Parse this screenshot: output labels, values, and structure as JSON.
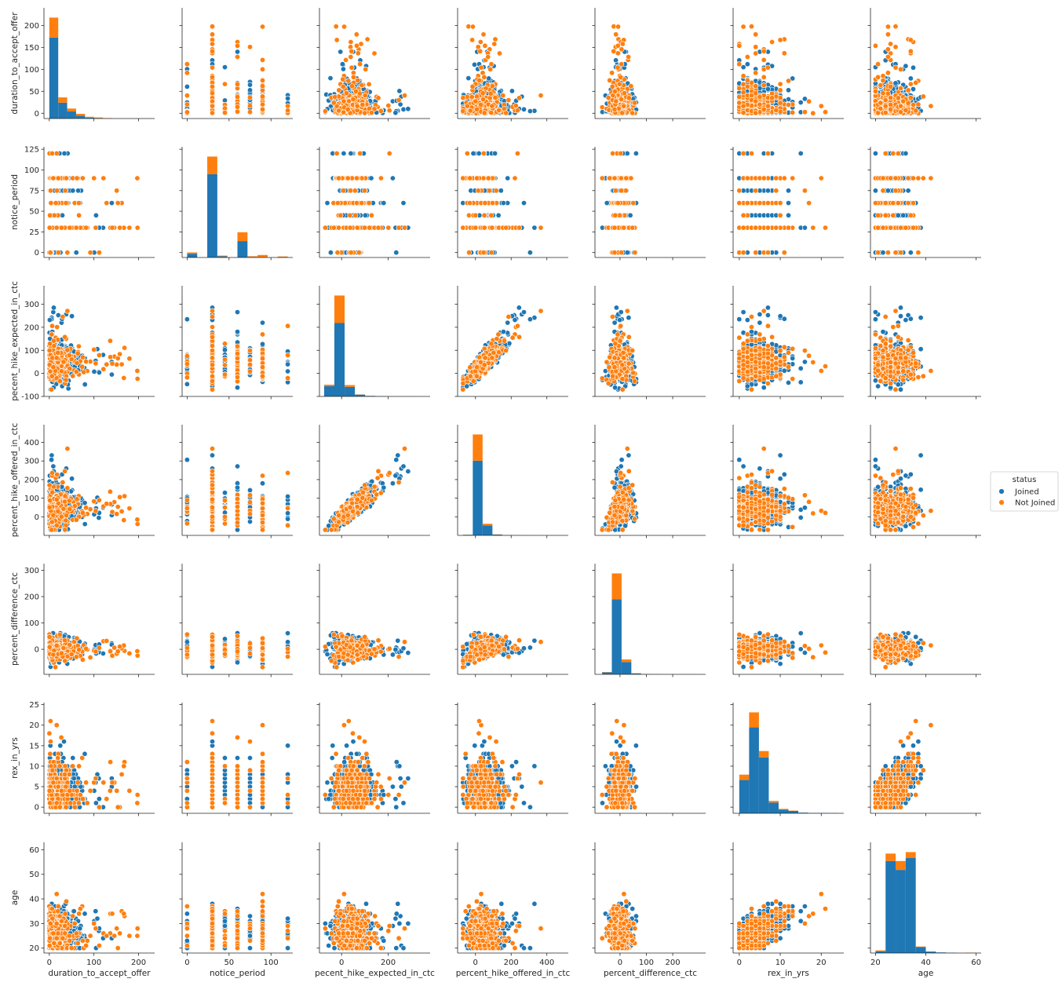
{
  "chart_data": {
    "type": "scatter",
    "subtype": "pairplot",
    "variables": [
      "duration_to_accept_offer",
      "notice_period",
      "pecent_hike_expected_in_ctc",
      "percent_hike_offered_in_ctc",
      "percent_difference_ctc",
      "rex_in_yrs",
      "age"
    ],
    "axes": {
      "duration_to_accept_offer": {
        "range": [
          -12,
          236
        ],
        "ticks": [
          0,
          100,
          200
        ],
        "ytick_range": [
          -12,
          240
        ],
        "yticks": [
          0,
          50,
          100,
          150,
          200
        ]
      },
      "notice_period": {
        "range": [
          -6,
          126
        ],
        "ticks": [
          0,
          50,
          100
        ],
        "yticks": [
          0,
          25,
          50,
          75,
          100,
          125
        ],
        "ytick_range": [
          -6,
          128
        ]
      },
      "pecent_hike_expected_in_ctc": {
        "range": [
          -95,
          380
        ],
        "ticks": [
          0,
          200
        ],
        "yticks": [
          -100,
          0,
          100,
          200,
          300
        ],
        "ytick_range": [
          -100,
          380
        ]
      },
      "percent_hike_offered_in_ctc": {
        "range": [
          -100,
          520
        ],
        "ticks": [
          0,
          200,
          400
        ],
        "yticks": [
          0,
          100,
          200,
          300,
          400
        ],
        "ytick_range": [
          -100,
          495
        ]
      },
      "percent_difference_ctc": {
        "range": [
          -95,
          325
        ],
        "ticks": [
          0,
          100,
          200
        ],
        "yticks": [
          0,
          100,
          200,
          300
        ],
        "ytick_range": [
          -95,
          325
        ]
      },
      "rex_in_yrs": {
        "range": [
          -1.5,
          25.5
        ],
        "ticks": [
          0,
          10,
          20
        ],
        "yticks": [
          0,
          5,
          10,
          15,
          20,
          25
        ],
        "ytick_range": [
          -1.5,
          25.5
        ]
      },
      "age": {
        "range": [
          18,
          62
        ],
        "ticks": [
          20,
          40,
          60
        ],
        "yticks": [
          20,
          30,
          40,
          50,
          60
        ],
        "ytick_range": [
          18,
          63
        ]
      }
    },
    "legend": {
      "title": "status",
      "placement": "right",
      "entries": [
        {
          "label": "Joined",
          "color": "#1f77b4"
        },
        {
          "label": "Not Joined",
          "color": "#ff7f0e"
        }
      ]
    },
    "colors": {
      "joined": "#1f77b4",
      "not_joined": "#ff7f0e"
    },
    "histograms": {
      "duration_to_accept_offer": {
        "bins": [
          0,
          20,
          40,
          60,
          80,
          100,
          120,
          140,
          160,
          180,
          200,
          220
        ],
        "joined": [
          138,
          27,
          12,
          5,
          1.5,
          0.8,
          0.3,
          0,
          0,
          0,
          0
        ],
        "not_joined": [
          34,
          9,
          5,
          3,
          1.5,
          1,
          0.5,
          0.2,
          0.2,
          0.2,
          0.2
        ]
      },
      "notice_period": {
        "bins": [
          0,
          12,
          24,
          36,
          48,
          60,
          72,
          84,
          96,
          108,
          120
        ],
        "joined": [
          3,
          0,
          66,
          1,
          0,
          13,
          0.5,
          0,
          0,
          0.3
        ],
        "not_joined": [
          1,
          0,
          14,
          0.5,
          0,
          7,
          0.5,
          2,
          0,
          0.5
        ]
      },
      "pecent_hike_expected_in_ctc": {
        "bins": [
          -75,
          -31,
          13,
          57,
          101,
          145,
          189,
          233,
          277,
          321,
          365
        ],
        "joined": [
          28,
          200,
          26,
          5,
          1.5,
          0.8,
          0.4,
          0.2,
          0.1,
          0.05
        ],
        "not_joined": [
          4,
          75,
          5,
          0.5,
          0.2,
          0,
          0,
          0,
          0,
          0
        ]
      },
      "percent_hike_offered_in_ctc": {
        "bins": [
          -70,
          -15,
          40,
          95,
          150,
          205,
          260,
          315,
          370,
          425,
          480
        ],
        "joined": [
          2,
          270,
          36,
          3,
          1,
          0.5,
          0.3,
          0.1,
          0.1,
          0.1
        ],
        "not_joined": [
          0.5,
          95,
          6,
          0.5,
          0.2,
          0,
          0,
          0,
          0,
          0
        ]
      },
      "percent_difference_ctc": {
        "bins": [
          -68,
          -31,
          6,
          43,
          80,
          117,
          154,
          191,
          228,
          265,
          302
        ],
        "joined": [
          6,
          232,
          38,
          3,
          1,
          0.6,
          0.3,
          0.1,
          0.1,
          0.1
        ],
        "not_joined": [
          1,
          80,
          8,
          0.5,
          0.2,
          0,
          0,
          0,
          0,
          0
        ]
      },
      "rex_in_yrs": {
        "bins": [
          0,
          2.4,
          4.8,
          7.2,
          9.6,
          12,
          14.4,
          16.8,
          19.2,
          21.6,
          24
        ],
        "joined": [
          31,
          80,
          52,
          10,
          3.5,
          2.2,
          0.6,
          0.3,
          0.3,
          0.2
        ],
        "not_joined": [
          5,
          14,
          6,
          1.5,
          0.6,
          0.3,
          0,
          0,
          0,
          0
        ]
      },
      "age": {
        "bins": [
          20,
          24,
          28,
          32,
          36,
          40,
          44,
          48,
          52,
          56,
          60
        ],
        "joined": [
          0.6,
          31,
          28,
          32,
          2,
          0.5,
          0.2,
          0.1,
          0,
          0
        ],
        "not_joined": [
          0.3,
          2.5,
          3,
          2,
          0.2,
          0,
          0,
          0,
          0,
          0.1
        ]
      }
    }
  }
}
